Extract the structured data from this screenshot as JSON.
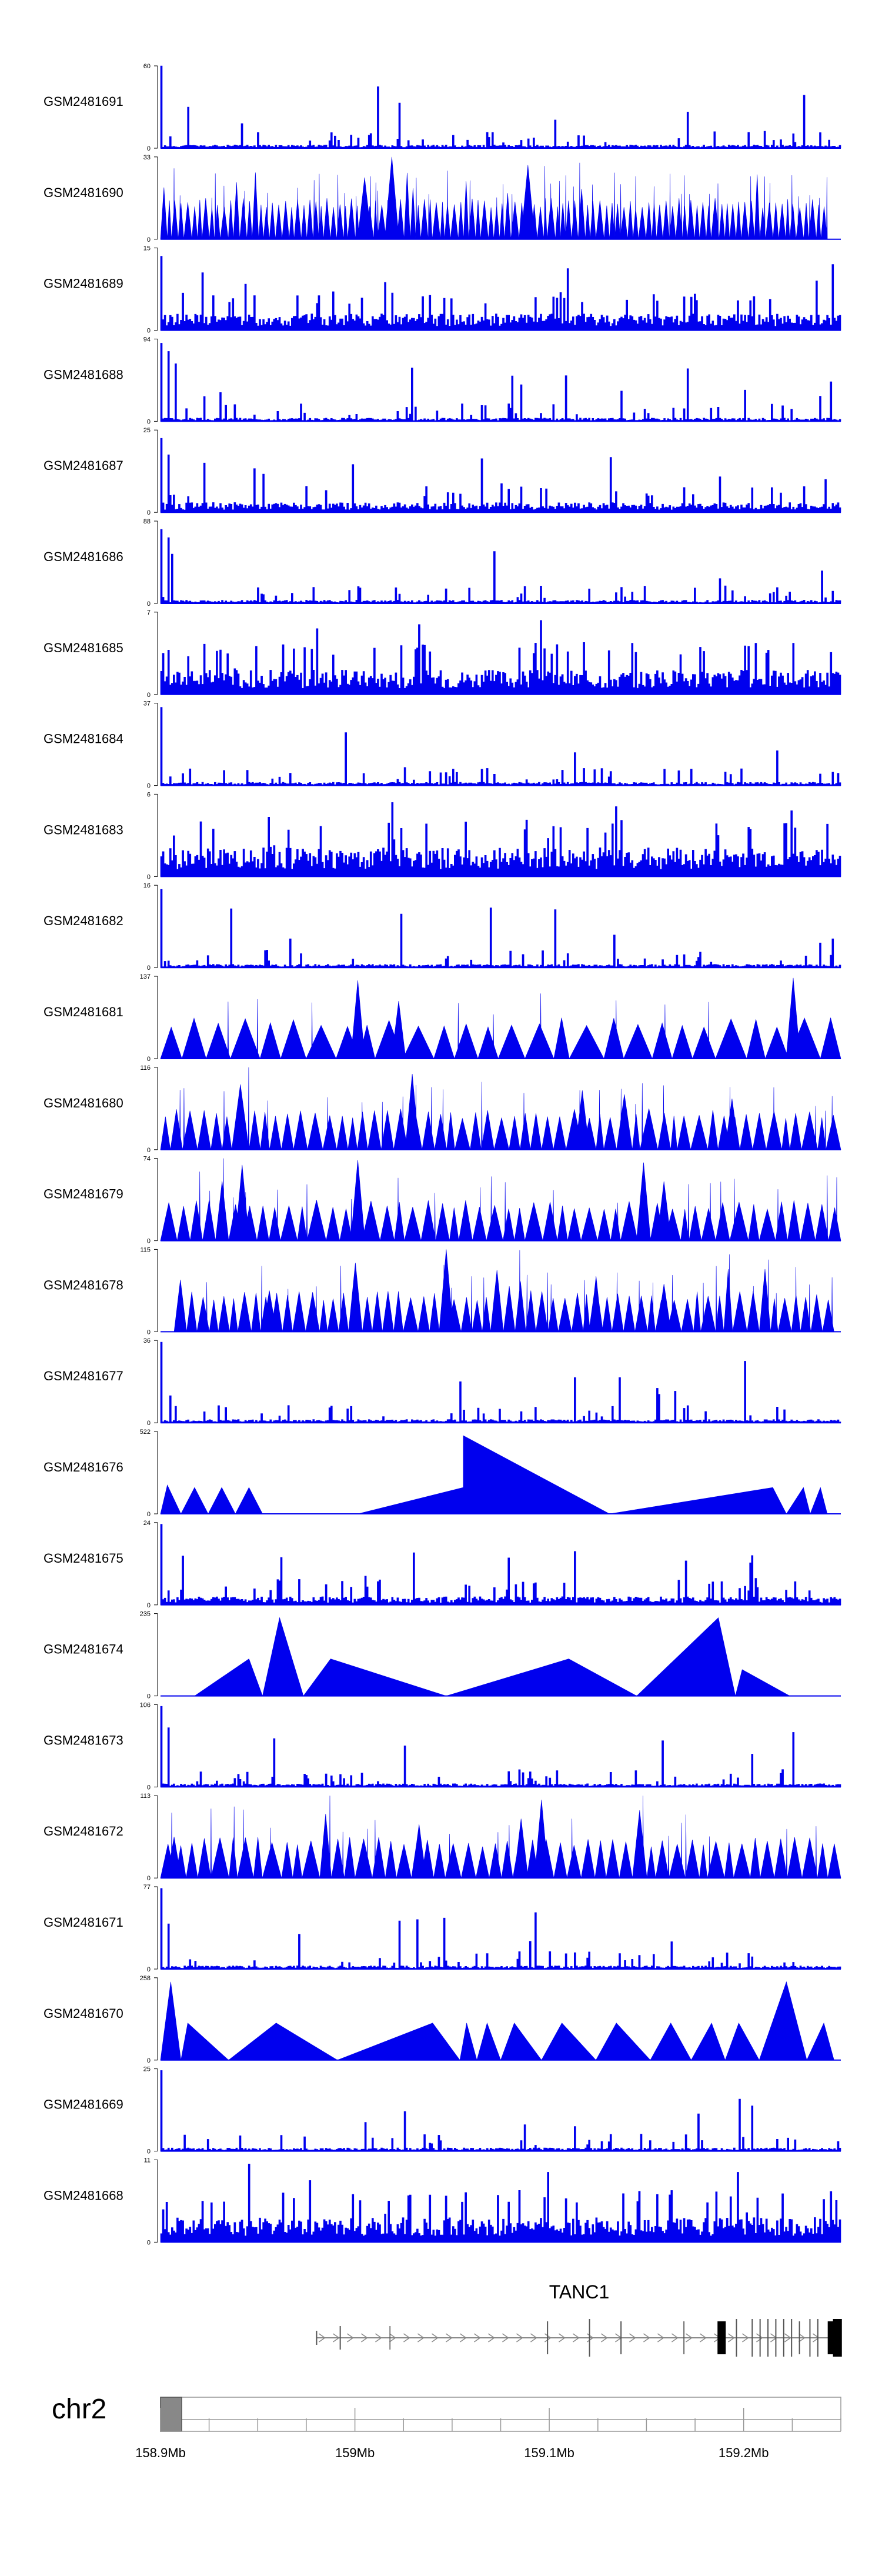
{
  "chart_data": {
    "type": "area",
    "title": "",
    "xlabel": "",
    "ylabel": "",
    "chromosome": "chr2",
    "x_range_mb": [
      158.9,
      159.25
    ],
    "x_ticks": [
      {
        "value": 158.9,
        "label": "158.9Mb"
      },
      {
        "value": 159.0,
        "label": "159Mb"
      },
      {
        "value": 159.1,
        "label": "159.1Mb"
      },
      {
        "value": 159.2,
        "label": "159.2Mb"
      }
    ],
    "gene": {
      "name": "TANC1",
      "start_mb": 158.98,
      "end_mb": 159.25,
      "strand": "+"
    },
    "tracks": [
      {
        "name": "GSM2481691",
        "ymax": 60,
        "style": "sparse",
        "seed": 11,
        "spikes": [
          [
            0.0,
            1.0
          ],
          [
            0.04,
            0.5
          ],
          [
            0.35,
            0.55
          ],
          [
            0.12,
            0.3
          ]
        ]
      },
      {
        "name": "GSM2481690",
        "ymax": 33,
        "style": "tri",
        "n": 110,
        "seed": 12,
        "stop": 0.98,
        "spikes": [
          [
            0.34,
            1.0
          ],
          [
            0.54,
            0.9
          ],
          [
            0.3,
            0.75
          ]
        ]
      },
      {
        "name": "GSM2481689",
        "ymax": 15,
        "style": "dense",
        "seed": 13,
        "base": 0.2,
        "spikes": [
          [
            0.0,
            0.9
          ],
          [
            0.99,
            0.8
          ],
          [
            0.6,
            0.75
          ],
          [
            0.06,
            0.7
          ]
        ]
      },
      {
        "name": "GSM2481688",
        "ymax": 94,
        "style": "sparse",
        "seed": 14,
        "spikes": [
          [
            0.0,
            0.95
          ],
          [
            0.01,
            0.85
          ],
          [
            0.02,
            0.7
          ]
        ]
      },
      {
        "name": "GSM2481687",
        "ymax": 25,
        "style": "dense",
        "seed": 15,
        "base": 0.12,
        "spikes": [
          [
            0.0,
            0.9
          ],
          [
            0.01,
            0.7
          ],
          [
            0.98,
            0.4
          ],
          [
            0.5,
            0.35
          ]
        ]
      },
      {
        "name": "GSM2481686",
        "ymax": 88,
        "style": "sparse",
        "seed": 16,
        "spikes": [
          [
            0.0,
            0.9
          ],
          [
            0.01,
            0.8
          ],
          [
            0.015,
            0.6
          ],
          [
            0.99,
            0.15
          ]
        ]
      },
      {
        "name": "GSM2481685",
        "ymax": 7,
        "style": "dense",
        "seed": 17,
        "base": 0.3,
        "spikes": [
          [
            0.56,
            0.9
          ],
          [
            0.38,
            0.85
          ],
          [
            0.23,
            0.8
          ]
        ]
      },
      {
        "name": "GSM2481684",
        "ymax": 37,
        "style": "sparse",
        "seed": 18,
        "spikes": [
          [
            0.0,
            0.95
          ],
          [
            0.61,
            0.4
          ],
          [
            0.36,
            0.22
          ],
          [
            0.19,
            0.15
          ]
        ]
      },
      {
        "name": "GSM2481683",
        "ymax": 6,
        "style": "dense",
        "seed": 19,
        "base": 0.35,
        "spikes": [
          [
            0.34,
            0.9
          ],
          [
            0.67,
            0.85
          ],
          [
            0.93,
            0.8
          ]
        ]
      },
      {
        "name": "GSM2481682",
        "ymax": 16,
        "style": "sparse",
        "seed": 20,
        "spikes": [
          [
            0.0,
            0.95
          ],
          [
            0.19,
            0.35
          ],
          [
            0.99,
            0.35
          ],
          [
            0.97,
            0.3
          ]
        ]
      },
      {
        "name": "GSM2481681",
        "ymax": 137,
        "style": "tri",
        "n": 28,
        "seed": 21,
        "spikes": [
          [
            0.29,
            0.95
          ],
          [
            0.93,
            0.98
          ],
          [
            0.35,
            0.7
          ]
        ]
      },
      {
        "name": "GSM2481680",
        "ymax": 116,
        "style": "tri",
        "n": 55,
        "seed": 22,
        "spikes": [
          [
            0.37,
            0.92
          ],
          [
            0.62,
            0.72
          ],
          [
            0.84,
            0.62
          ]
        ]
      },
      {
        "name": "GSM2481679",
        "ymax": 74,
        "style": "tri",
        "n": 50,
        "seed": 23,
        "spikes": [
          [
            0.29,
            0.98
          ],
          [
            0.71,
            0.95
          ],
          [
            0.12,
            0.92
          ],
          [
            0.74,
            0.72
          ]
        ]
      },
      {
        "name": "GSM2481678",
        "ymax": 115,
        "style": "tri",
        "n": 60,
        "seed": 24,
        "start": 0.02,
        "stop": 0.99,
        "spikes": [
          [
            0.42,
            1.0
          ],
          [
            0.64,
            0.62
          ],
          [
            0.16,
            0.5
          ],
          [
            0.74,
            0.58
          ]
        ]
      },
      {
        "name": "GSM2481677",
        "ymax": 36,
        "style": "sparse",
        "seed": 25,
        "spikes": [
          [
            0.0,
            0.98
          ],
          [
            0.61,
            0.55
          ],
          [
            0.44,
            0.5
          ],
          [
            0.73,
            0.42
          ]
        ]
      },
      {
        "name": "GSM2481676",
        "ymax": 522,
        "style": "poly",
        "seed": 26,
        "points": [
          [
            0.0,
            0.0
          ],
          [
            0.01,
            0.35
          ],
          [
            0.03,
            0.0
          ],
          [
            0.05,
            0.32
          ],
          [
            0.07,
            0.0
          ],
          [
            0.09,
            0.32
          ],
          [
            0.11,
            0.0
          ],
          [
            0.13,
            0.32
          ],
          [
            0.15,
            0.0
          ],
          [
            0.29,
            0.0
          ],
          [
            0.445,
            0.32
          ],
          [
            0.445,
            0.95
          ],
          [
            0.66,
            0.0
          ],
          [
            0.9,
            0.32
          ],
          [
            0.92,
            0.0
          ],
          [
            0.945,
            0.32
          ],
          [
            0.955,
            0.0
          ],
          [
            0.97,
            0.32
          ],
          [
            0.98,
            0.0
          ]
        ]
      },
      {
        "name": "GSM2481675",
        "ymax": 24,
        "style": "dense",
        "seed": 27,
        "base": 0.1,
        "spikes": [
          [
            0.0,
            0.98
          ],
          [
            0.61,
            0.65
          ],
          [
            0.87,
            0.6
          ],
          [
            0.3,
            0.35
          ]
        ]
      },
      {
        "name": "GSM2481674",
        "ymax": 235,
        "style": "poly",
        "seed": 28,
        "points": [
          [
            0.05,
            0.0
          ],
          [
            0.13,
            0.45
          ],
          [
            0.15,
            0.0
          ],
          [
            0.175,
            0.95
          ],
          [
            0.21,
            0.0
          ],
          [
            0.25,
            0.45
          ],
          [
            0.42,
            0.0
          ],
          [
            0.6,
            0.45
          ],
          [
            0.7,
            0.0
          ],
          [
            0.82,
            0.95
          ],
          [
            0.845,
            0.0
          ],
          [
            0.855,
            0.32
          ],
          [
            0.925,
            0.0
          ]
        ]
      },
      {
        "name": "GSM2481673",
        "ymax": 106,
        "style": "sparse",
        "seed": 29,
        "spikes": [
          [
            0.0,
            0.98
          ],
          [
            0.01,
            0.72
          ],
          [
            0.36,
            0.5
          ],
          [
            0.87,
            0.4
          ]
        ]
      },
      {
        "name": "GSM2481672",
        "ymax": 113,
        "style": "tri",
        "n": 52,
        "seed": 30,
        "spikes": [
          [
            0.56,
            0.95
          ],
          [
            0.38,
            0.65
          ],
          [
            0.53,
            0.72
          ],
          [
            0.02,
            0.5
          ]
        ]
      },
      {
        "name": "GSM2481671",
        "ymax": 77,
        "style": "sparse",
        "seed": 31,
        "spikes": [
          [
            0.0,
            0.98
          ],
          [
            0.01,
            0.55
          ],
          [
            0.61,
            0.2
          ],
          [
            0.87,
            0.15
          ]
        ]
      },
      {
        "name": "GSM2481670",
        "ymax": 258,
        "style": "poly",
        "seed": 32,
        "points": [
          [
            0.0,
            0.0
          ],
          [
            0.015,
            0.95
          ],
          [
            0.03,
            0.0
          ],
          [
            0.04,
            0.45
          ],
          [
            0.1,
            0.0
          ],
          [
            0.17,
            0.45
          ],
          [
            0.26,
            0.0
          ],
          [
            0.4,
            0.45
          ],
          [
            0.44,
            0.0
          ],
          [
            0.45,
            0.45
          ],
          [
            0.465,
            0.0
          ],
          [
            0.48,
            0.45
          ],
          [
            0.5,
            0.0
          ],
          [
            0.52,
            0.45
          ],
          [
            0.56,
            0.0
          ],
          [
            0.59,
            0.45
          ],
          [
            0.64,
            0.0
          ],
          [
            0.67,
            0.45
          ],
          [
            0.72,
            0.0
          ],
          [
            0.75,
            0.45
          ],
          [
            0.78,
            0.0
          ],
          [
            0.81,
            0.45
          ],
          [
            0.83,
            0.0
          ],
          [
            0.85,
            0.45
          ],
          [
            0.88,
            0.0
          ],
          [
            0.92,
            0.95
          ],
          [
            0.95,
            0.0
          ],
          [
            0.975,
            0.45
          ],
          [
            0.99,
            0.0
          ]
        ]
      },
      {
        "name": "GSM2481669",
        "ymax": 25,
        "style": "sparse",
        "seed": 33,
        "spikes": [
          [
            0.0,
            0.98
          ],
          [
            0.87,
            0.55
          ],
          [
            0.3,
            0.35
          ],
          [
            0.61,
            0.3
          ]
        ]
      },
      {
        "name": "GSM2481668",
        "ymax": 11,
        "style": "dense",
        "seed": 34,
        "base": 0.3,
        "spikes": [
          [
            0.13,
            0.95
          ],
          [
            0.57,
            0.85
          ],
          [
            0.85,
            0.85
          ],
          [
            0.22,
            0.75
          ]
        ]
      }
    ]
  },
  "colors": {
    "signal": "#0000EE",
    "axis": "#000000",
    "ideogram_fill": "#888888"
  }
}
